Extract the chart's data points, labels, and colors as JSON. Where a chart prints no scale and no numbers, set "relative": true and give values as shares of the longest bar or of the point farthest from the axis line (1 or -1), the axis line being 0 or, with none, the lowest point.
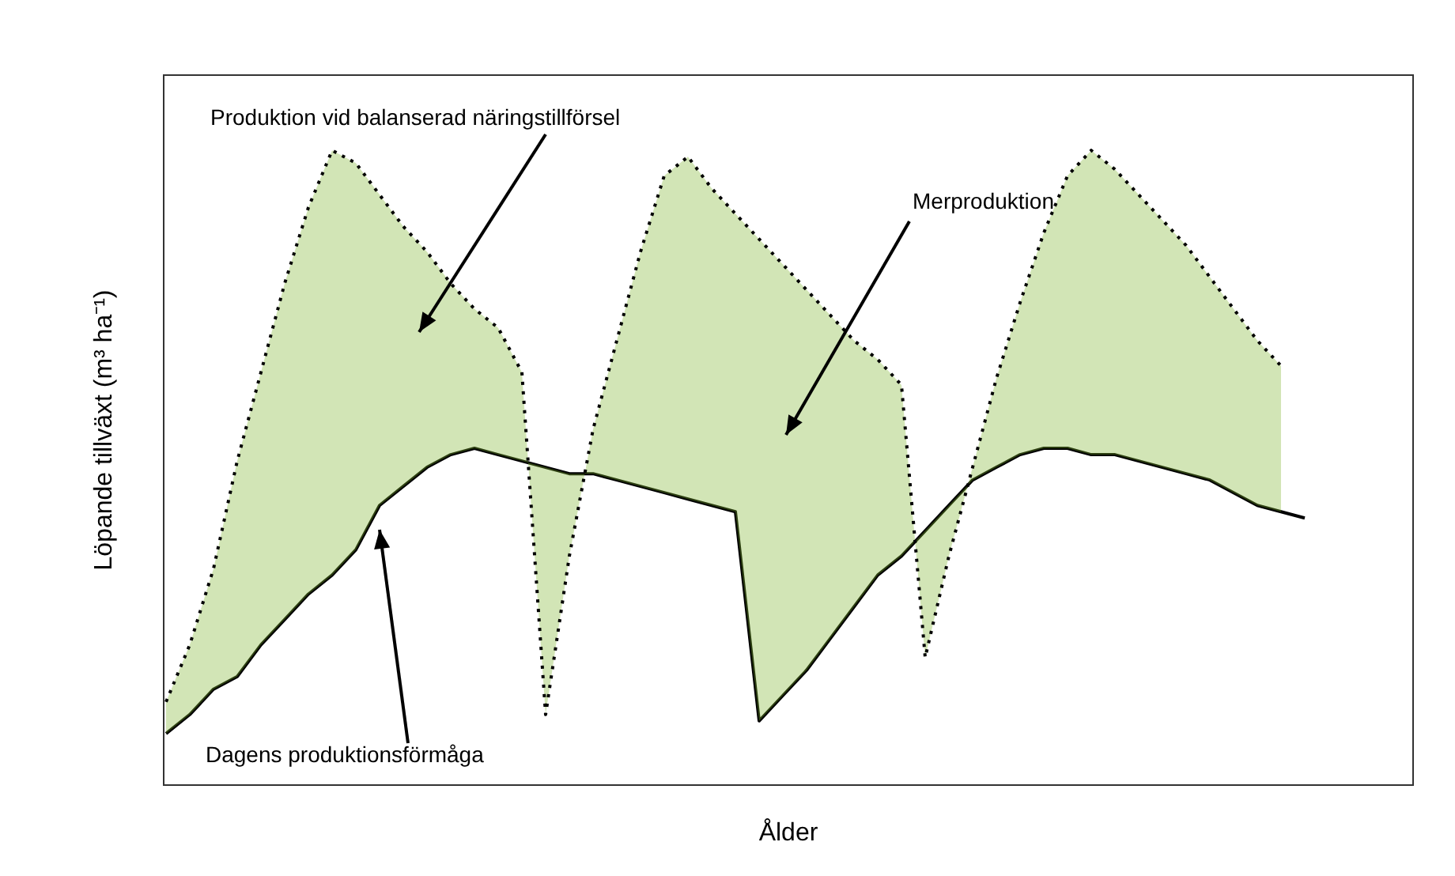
{
  "chart_data": {
    "type": "line",
    "relative": true,
    "xlabel": "Ålder",
    "ylabel": "Löpande tillväxt (m³ ha⁻¹)",
    "categories": [
      null,
      null,
      null,
      null,
      null,
      null,
      null,
      null,
      null,
      null,
      null,
      null,
      null,
      null,
      null,
      null,
      null,
      null,
      null,
      null,
      null,
      null,
      null,
      null,
      null,
      null,
      null,
      null,
      null,
      null,
      null,
      null,
      null,
      null,
      null,
      null,
      null,
      null,
      null,
      null,
      null,
      null,
      null,
      null,
      null,
      null,
      null,
      null,
      null
    ],
    "series": [
      {
        "color": "#000000",
        "line_style": "solid",
        "values": [
          0.08,
          0.11,
          0.15,
          0.17,
          0.22,
          0.26,
          0.3,
          0.33,
          0.37,
          0.44,
          0.47,
          0.5,
          0.52,
          0.53,
          0.52,
          0.51,
          0.5,
          0.49,
          0.49,
          0.48,
          0.47,
          0.46,
          0.45,
          0.44,
          0.43,
          0.1,
          0.14,
          0.18,
          0.23,
          0.28,
          0.33,
          0.36,
          0.4,
          0.44,
          0.48,
          0.5,
          0.52,
          0.53,
          0.53,
          0.52,
          0.52,
          0.51,
          0.5,
          0.49,
          0.48,
          0.46,
          0.44,
          0.43,
          0.42
        ]
      },
      {
        "color": "#000000",
        "line_style": "dotted",
        "values": [
          0.13,
          0.22,
          0.34,
          0.51,
          0.65,
          0.79,
          0.91,
          1.0,
          0.98,
          0.93,
          0.88,
          0.84,
          0.79,
          0.75,
          0.72,
          0.65,
          0.11,
          0.36,
          0.56,
          0.7,
          0.84,
          0.96,
          0.99,
          0.94,
          0.9,
          0.86,
          0.82,
          0.78,
          0.74,
          0.7,
          0.67,
          0.63,
          0.2,
          0.36,
          0.5,
          0.64,
          0.76,
          0.87,
          0.96,
          1.0,
          0.97,
          0.93,
          0.89,
          0.85,
          0.8,
          0.75,
          0.7,
          0.66,
          null
        ],
        "lower": [
          0.08,
          0.11,
          0.15,
          0.17,
          0.22,
          0.26,
          0.3,
          0.33,
          0.37,
          0.44,
          0.47,
          0.5,
          0.52,
          0.53,
          0.52,
          0.51,
          0.5,
          0.49,
          0.49,
          0.48,
          0.47,
          0.46,
          0.45,
          0.44,
          0.43,
          0.1,
          0.14,
          0.18,
          0.23,
          0.28,
          0.33,
          0.36,
          0.4,
          0.44,
          0.48,
          0.5,
          0.52,
          0.53,
          0.53,
          0.52,
          0.52,
          0.51,
          0.5,
          0.49,
          0.48,
          0.46,
          0.44,
          0.43,
          null
        ],
        "upper": [
          0.13,
          0.22,
          0.34,
          0.51,
          0.65,
          0.79,
          0.91,
          1.0,
          0.98,
          0.93,
          0.88,
          0.84,
          0.79,
          0.75,
          0.72,
          0.65,
          0.11,
          0.36,
          0.56,
          0.7,
          0.84,
          0.96,
          0.99,
          0.94,
          0.9,
          0.86,
          0.82,
          0.78,
          0.74,
          0.7,
          0.67,
          0.63,
          0.2,
          0.36,
          0.5,
          0.64,
          0.76,
          0.87,
          0.96,
          1.0,
          0.97,
          0.93,
          0.89,
          0.85,
          0.8,
          0.75,
          0.7,
          0.66,
          null
        ]
      }
    ],
    "annotations": [
      "Produktion vid balanserad näringstillförsel",
      "Merproduktion",
      "Dagens produktionsförmåga"
    ],
    "tick_labels": false,
    "grid": false
  }
}
